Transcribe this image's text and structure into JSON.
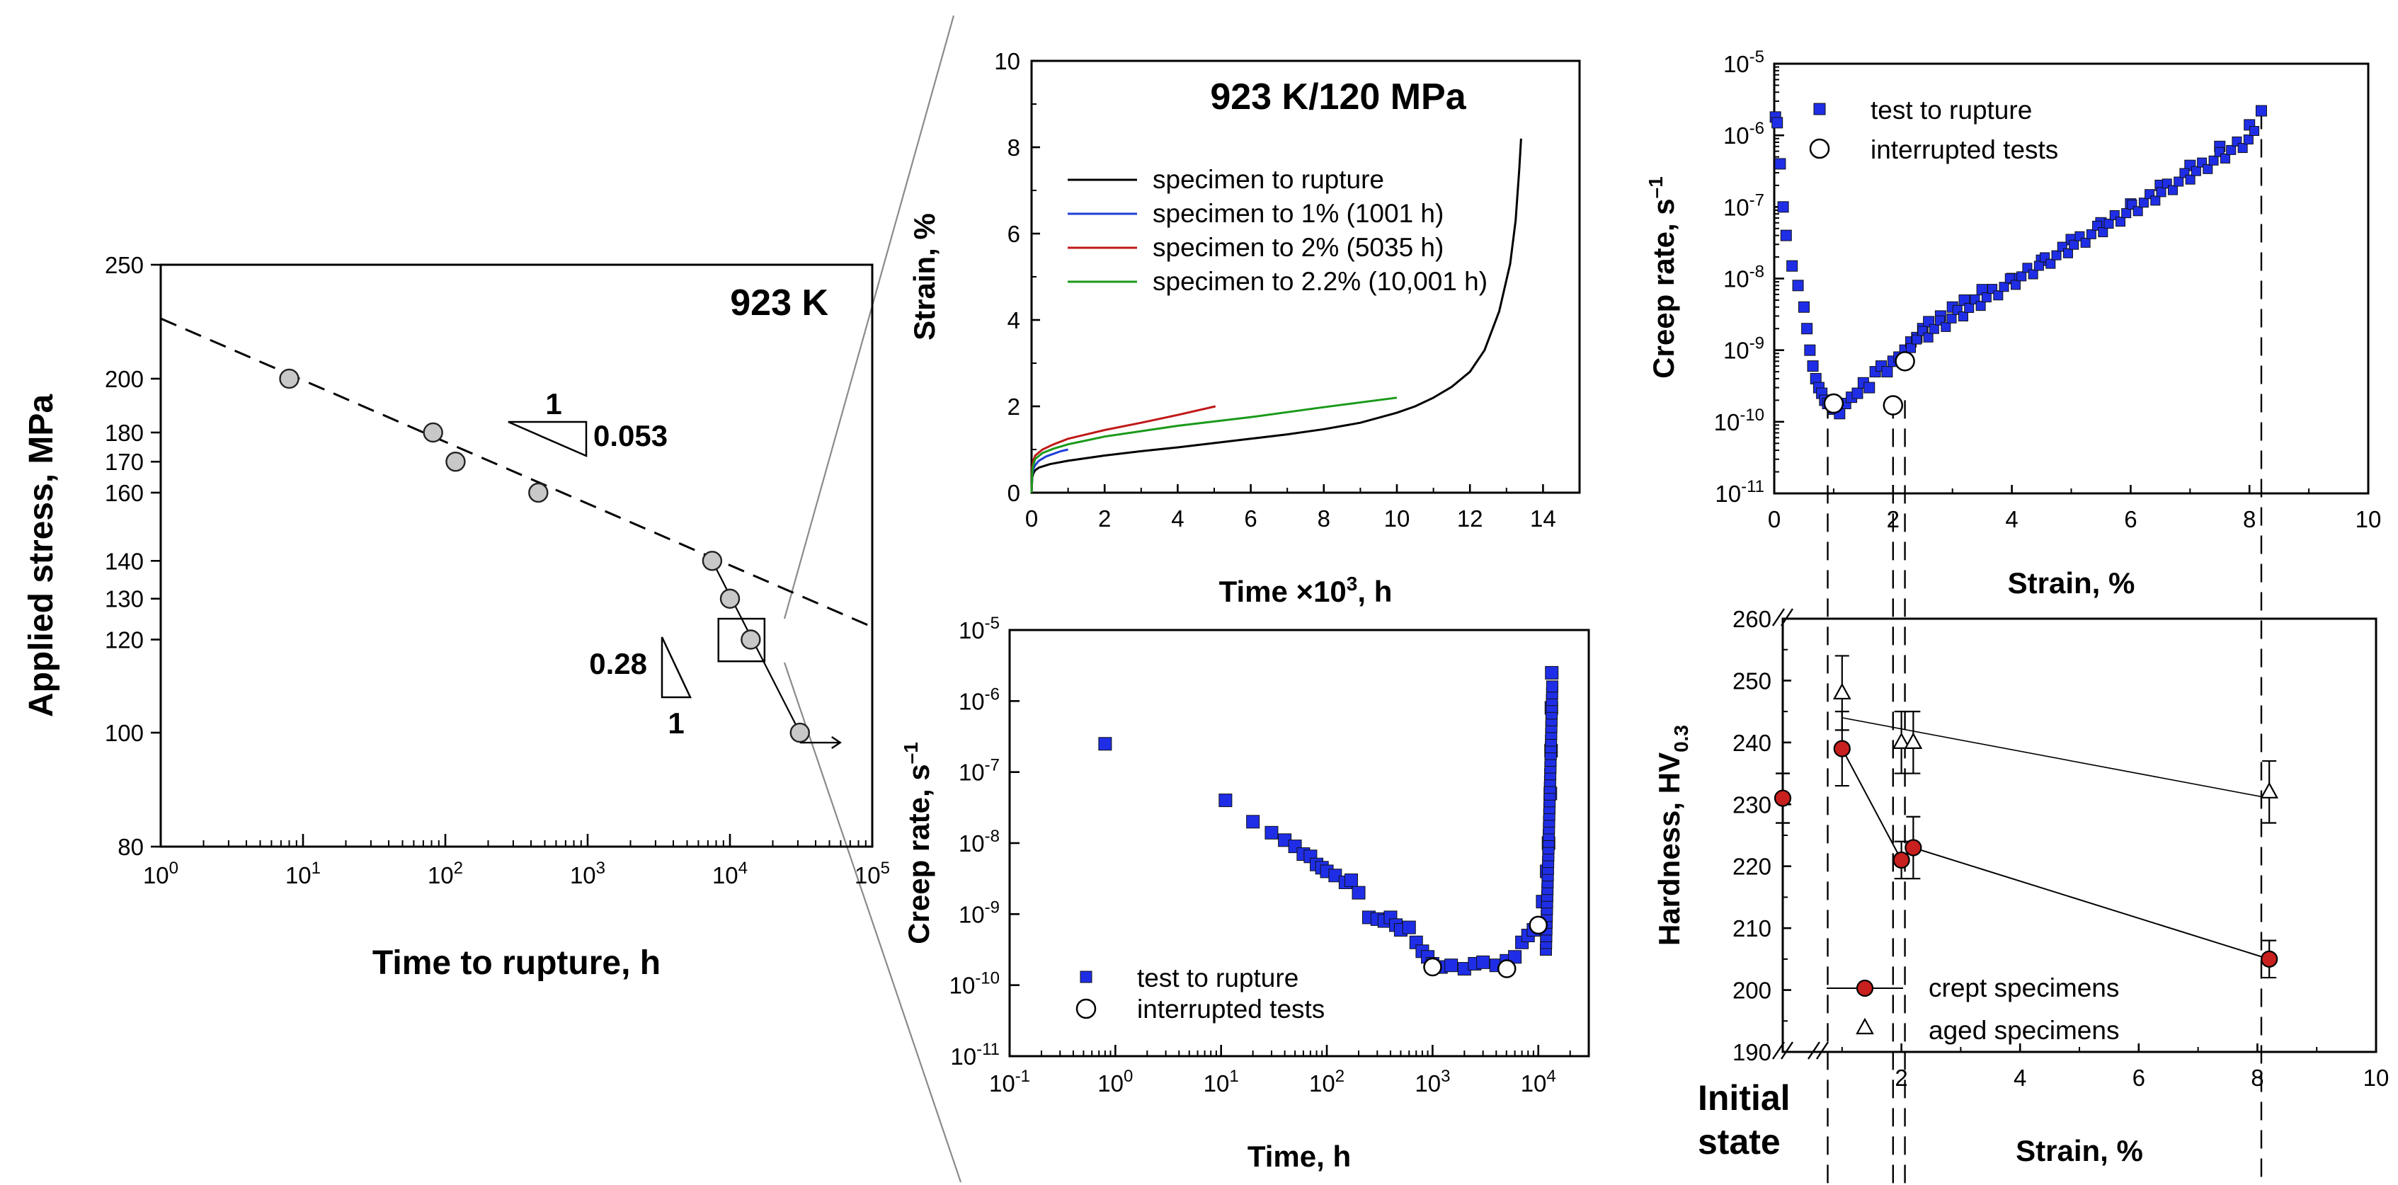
{
  "figure": {
    "zoom_box_label": "",
    "initial_state_label_line1": "Initial",
    "initial_state_label_line2": "state"
  },
  "chart_data": [
    {
      "id": "stress",
      "type": "scatter",
      "title": "923 K",
      "xlabel": "Time to rupture, h",
      "ylabel": "Applied stress, MPa",
      "xscale": "log",
      "yscale": "log",
      "xlim": [
        1,
        100000
      ],
      "ylim": [
        80,
        250
      ],
      "xticks": [
        1,
        10,
        100,
        1000,
        10000,
        100000
      ],
      "xticklabels": [
        [
          "10",
          "0"
        ],
        [
          "10",
          "1"
        ],
        [
          "10",
          "2"
        ],
        [
          "10",
          "3"
        ],
        [
          "10",
          "4"
        ],
        [
          "10",
          "5"
        ]
      ],
      "yticks": [
        80,
        100,
        120,
        130,
        140,
        160,
        170,
        180,
        200,
        250
      ],
      "yticklabels": [
        "80",
        "100",
        "120",
        "130",
        "140",
        "160",
        "170",
        "180",
        "200",
        "250"
      ],
      "points": [
        [
          8,
          200
        ],
        [
          82,
          180
        ],
        [
          118,
          170
        ],
        [
          450,
          160
        ],
        [
          7500,
          140
        ],
        [
          10000,
          130
        ],
        [
          14000,
          120
        ],
        [
          31000,
          100
        ]
      ],
      "dashed_fit": [
        [
          1,
          225
        ],
        [
          100000,
          123
        ]
      ],
      "solid_fit": [
        [
          7500,
          140
        ],
        [
          31000,
          100
        ]
      ],
      "runout_arrow_from": [
        31000,
        100
      ],
      "slope_annotations": [
        {
          "run": "1",
          "rise": "0.053"
        },
        {
          "run": "1",
          "rise": "0.28"
        }
      ],
      "zoom_box": {
        "x": [
          8300,
          17500
        ],
        "y": [
          115,
          125
        ]
      }
    },
    {
      "id": "strain-time",
      "type": "line",
      "title": "923 K/120 MPa",
      "xlabel": "Time ×10",
      "xlabel_sup": "3",
      "xlabel_tail": ", h",
      "ylabel": "Strain, %",
      "xlim": [
        0,
        15
      ],
      "ylim": [
        0,
        10
      ],
      "xticks": [
        0,
        2,
        4,
        6,
        8,
        10,
        12,
        14
      ],
      "yticks": [
        0,
        2,
        4,
        6,
        8,
        10
      ],
      "series": [
        {
          "name": "specimen to rupture",
          "color": "#000000",
          "x": [
            0,
            0.02,
            0.05,
            0.1,
            0.2,
            0.5,
            1,
            2,
            3,
            4,
            5,
            6,
            7,
            8,
            9,
            10,
            10.5,
            11,
            11.5,
            12,
            12.4,
            12.8,
            13.1,
            13.25,
            13.35,
            13.4
          ],
          "y": [
            0,
            0.35,
            0.45,
            0.52,
            0.58,
            0.66,
            0.74,
            0.86,
            0.96,
            1.05,
            1.15,
            1.25,
            1.35,
            1.47,
            1.62,
            1.85,
            2.0,
            2.2,
            2.45,
            2.8,
            3.3,
            4.2,
            5.3,
            6.3,
            7.5,
            8.2
          ]
        },
        {
          "name": "specimen to 1% (1001 h)",
          "color": "#1f3fd6",
          "x": [
            0,
            0.02,
            0.05,
            0.1,
            0.2,
            0.4,
            0.6,
            0.8,
            1.0
          ],
          "y": [
            0,
            0.42,
            0.55,
            0.64,
            0.74,
            0.84,
            0.9,
            0.96,
            1.0
          ]
        },
        {
          "name": "specimen to 2% (5035 h)",
          "color": "#c01818",
          "x": [
            0,
            0.02,
            0.05,
            0.1,
            0.3,
            0.6,
            1,
            2,
            3,
            4,
            5.035
          ],
          "y": [
            0,
            0.6,
            0.75,
            0.86,
            1.0,
            1.12,
            1.25,
            1.45,
            1.62,
            1.8,
            2.0
          ]
        },
        {
          "name": "specimen to 2.2% (10,001 h)",
          "color": "#1a9a1a",
          "x": [
            0,
            0.02,
            0.05,
            0.1,
            0.3,
            0.6,
            1,
            2,
            4,
            6,
            8,
            10.0
          ],
          "y": [
            0,
            0.5,
            0.65,
            0.78,
            0.92,
            1.02,
            1.12,
            1.3,
            1.55,
            1.75,
            1.98,
            2.2
          ]
        }
      ]
    },
    {
      "id": "rate-time",
      "type": "scatter",
      "title": "",
      "xlabel": "Time, h",
      "ylabel": "Creep rate, s",
      "ylabel_sup": "–1",
      "xscale": "log",
      "yscale": "log",
      "xlim": [
        0.1,
        30000
      ],
      "ylim": [
        1e-11,
        1e-05
      ],
      "xticks": [
        0.1,
        1,
        10,
        100,
        1000,
        10000
      ],
      "xticklabels": [
        [
          "10",
          "-1"
        ],
        [
          "10",
          "0"
        ],
        [
          "10",
          "1"
        ],
        [
          "10",
          "2"
        ],
        [
          "10",
          "3"
        ],
        [
          "10",
          "4"
        ]
      ],
      "yticks": [
        1e-11,
        1e-10,
        1e-09,
        1e-08,
        1e-07,
        1e-06,
        1e-05
      ],
      "yticklabels": [
        [
          "10",
          "-11"
        ],
        [
          "10",
          "-10"
        ],
        [
          "10",
          "-9"
        ],
        [
          "10",
          "-8"
        ],
        [
          "10",
          "-7"
        ],
        [
          "10",
          "-6"
        ],
        [
          "10",
          "-5"
        ]
      ],
      "legend": [
        {
          "name": "test to rupture",
          "marker": "square",
          "color": "#1f2ee6"
        },
        {
          "name": "interrupted tests",
          "marker": "open-circle"
        }
      ],
      "series": [
        {
          "name": "test to rupture",
          "marker": "square",
          "color": "#1f2ee6",
          "x": [
            0.8,
            11,
            20,
            30,
            40,
            50,
            60,
            70,
            80,
            90,
            100,
            120,
            150,
            170,
            200,
            250,
            300,
            350,
            400,
            450,
            500,
            600,
            700,
            800,
            900,
            1000,
            1200,
            1500,
            2000,
            2500,
            3000,
            4000,
            5000,
            6000,
            7000,
            8000,
            9000,
            10000,
            11000,
            12000,
            12500,
            13000,
            13200,
            13300,
            13400
          ],
          "y": [
            2.5e-07,
            4e-08,
            2e-08,
            1.4e-08,
            1.1e-08,
            9e-09,
            7e-09,
            6.5e-09,
            5e-09,
            4.5e-09,
            4e-09,
            3.5e-09,
            2.8e-09,
            3e-09,
            2e-09,
            9e-10,
            8.5e-10,
            8e-10,
            9e-10,
            7e-10,
            6e-10,
            6.5e-10,
            4e-10,
            3e-10,
            2.5e-10,
            2e-10,
            1.8e-10,
            1.9e-10,
            1.7e-10,
            2e-10,
            2.1e-10,
            1.9e-10,
            2.2e-10,
            2.5e-10,
            4e-10,
            5e-10,
            6e-10,
            7e-10,
            1.5e-09,
            4e-09,
            1e-08,
            5e-08,
            2e-07,
            8e-07,
            2.5e-06
          ]
        },
        {
          "name": "interrupted tests",
          "marker": "open-circle",
          "x": [
            1001,
            5035,
            10001
          ],
          "y": [
            1.8e-10,
            1.7e-10,
            7e-10
          ]
        }
      ]
    },
    {
      "id": "rate-strain",
      "type": "scatter",
      "title": "",
      "xlabel": "Strain, %",
      "ylabel": "Creep rate, s",
      "ylabel_sup": "–1",
      "yscale": "log",
      "xlim": [
        0,
        10
      ],
      "ylim": [
        1e-11,
        1e-05
      ],
      "xticks": [
        0,
        2,
        4,
        6,
        8,
        10
      ],
      "yticks": [
        1e-11,
        1e-10,
        1e-09,
        1e-08,
        1e-07,
        1e-06,
        1e-05
      ],
      "yticklabels": [
        [
          "10",
          "-11"
        ],
        [
          "10",
          "-10"
        ],
        [
          "10",
          "-9"
        ],
        [
          "10",
          "-8"
        ],
        [
          "10",
          "-7"
        ],
        [
          "10",
          "-6"
        ],
        [
          "10",
          "-5"
        ]
      ],
      "legend": [
        {
          "name": "test to rupture",
          "marker": "square",
          "color": "#1f2ee6"
        },
        {
          "name": "interrupted tests",
          "marker": "open-circle"
        }
      ],
      "series": [
        {
          "name": "test to rupture",
          "marker": "square",
          "color": "#1f2ee6",
          "x": [
            0.02,
            0.05,
            0.1,
            0.15,
            0.2,
            0.3,
            0.4,
            0.5,
            0.55,
            0.6,
            0.65,
            0.7,
            0.75,
            0.8,
            0.85,
            0.9,
            1.0,
            1.1,
            1.2,
            1.3,
            1.4,
            1.5,
            1.6,
            1.7,
            1.8,
            1.9,
            2.0,
            2.1,
            2.2,
            2.3,
            2.4,
            2.5,
            2.6,
            2.8,
            3.0,
            3.2,
            3.5,
            4.0,
            4.5,
            5.0,
            5.5,
            6.0,
            6.5,
            7.0,
            7.5,
            8.0,
            8.2
          ],
          "y": [
            1.8e-06,
            1.5e-06,
            4e-07,
            1e-07,
            4e-08,
            1.5e-08,
            8e-09,
            4e-09,
            2e-09,
            1e-09,
            6e-10,
            4e-10,
            3e-10,
            2.5e-10,
            2e-10,
            1.8e-10,
            1.5e-10,
            1.3e-10,
            1.8e-10,
            2.2e-10,
            2.5e-10,
            3.5e-10,
            3e-10,
            5e-10,
            6e-10,
            5e-10,
            7e-10,
            8e-10,
            1e-09,
            1.3e-09,
            1.5e-09,
            2e-09,
            2.5e-09,
            3e-09,
            4e-09,
            5e-09,
            7e-09,
            1e-08,
            1.8e-08,
            3.5e-08,
            6e-08,
            1.1e-07,
            2e-07,
            3.8e-07,
            7e-07,
            1.4e-06,
            2.2e-06
          ]
        },
        {
          "name": "interrupted tests",
          "marker": "open-circle",
          "x": [
            1.0,
            2.0,
            2.2
          ],
          "y": [
            1.8e-10,
            1.7e-10,
            7e-10
          ]
        }
      ],
      "dashed_drops_x": [
        0.9,
        2.0,
        2.2,
        8.2
      ]
    },
    {
      "id": "hardness",
      "type": "line",
      "title": "",
      "xlabel": "Strain, %",
      "ylabel": "Hardness, HV",
      "ylabel_sub": "0.3",
      "xlim": [
        0,
        10
      ],
      "ylim": [
        190,
        260
      ],
      "xticks": [
        2,
        4,
        6,
        8,
        10
      ],
      "yticks": [
        190,
        200,
        210,
        220,
        230,
        240,
        250,
        260
      ],
      "legend": [
        {
          "name": "crept specimens",
          "marker": "filled-circle",
          "color": "#c8201e"
        },
        {
          "name": "aged specimens",
          "marker": "open-triangle"
        }
      ],
      "initial_state": {
        "value": 231,
        "error": 4
      },
      "series": [
        {
          "name": "crept specimens",
          "marker": "filled-circle",
          "color": "#c8201e",
          "x": [
            1.0,
            2.0,
            2.2,
            8.2
          ],
          "y": [
            239,
            221,
            223,
            205
          ],
          "err": [
            6,
            3,
            5,
            3
          ]
        },
        {
          "name": "aged specimens",
          "marker": "open-triangle",
          "x": [
            1.0,
            2.0,
            2.2,
            8.2
          ],
          "y": [
            248,
            240,
            240,
            232
          ],
          "err": [
            6,
            5,
            5,
            5
          ],
          "fit": [
            [
              1.0,
              244
            ],
            [
              8.2,
              231
            ]
          ]
        }
      ],
      "dashed_drops_x": [
        1.0,
        2.0,
        2.2,
        8.2
      ]
    }
  ]
}
